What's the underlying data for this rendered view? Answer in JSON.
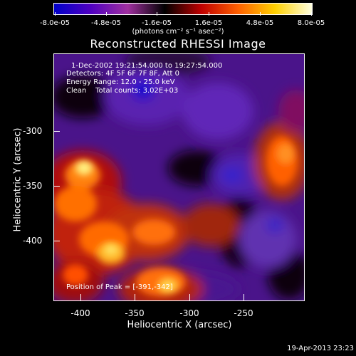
{
  "colorbar": {
    "ticks": [
      "-8.0e-05",
      "-4.8e-05",
      "-1.6e-05",
      "1.6e-05",
      "4.8e-05",
      "8.0e-05"
    ],
    "units": "(photons cm⁻² s⁻¹ asec⁻²)",
    "colors": [
      "#0000c8",
      "#5000c0",
      "#a030a0",
      "#000000",
      "#c00000",
      "#ff6000",
      "#ffd000",
      "#ffffe0"
    ]
  },
  "title": "Reconstructed RHESSI Image",
  "info": {
    "time": "1-Dec-2002 19:21:54.000 to 19:27:54.000",
    "detectors": "Detectors: 4F 5F 6F 7F 8F, Att 0",
    "energy": "Energy Range: 12.0 - 25.0 keV",
    "clean": "Clean    Total counts: 3.02E+03",
    "peak": "Position of Peak = [-391,-342]"
  },
  "axes": {
    "xlabel": "Heliocentric X (arcsec)",
    "ylabel": "Heliocentric Y (arcsec)",
    "xticks": [
      "-400",
      "-350",
      "-300",
      "-250"
    ],
    "yticks": [
      "-300",
      "-350",
      "-400"
    ]
  },
  "footer": "19-Apr-2013 23:23"
}
